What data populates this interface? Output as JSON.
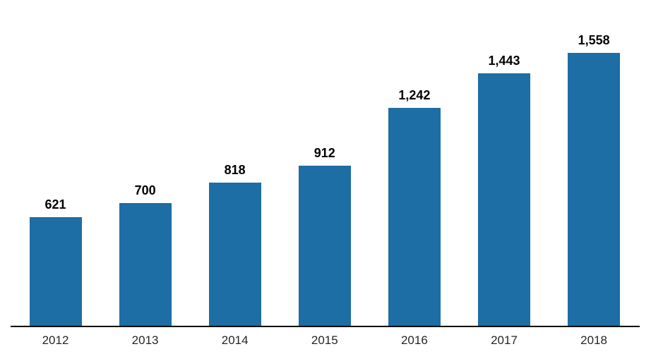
{
  "chart_data": {
    "type": "bar",
    "title": "",
    "xlabel": "",
    "ylabel": "",
    "categories": [
      "2012",
      "2013",
      "2014",
      "2015",
      "2016",
      "2017",
      "2018"
    ],
    "values": [
      621,
      700,
      818,
      912,
      1242,
      1443,
      1558
    ],
    "value_labels": [
      "621",
      "700",
      "818",
      "912",
      "1,242",
      "1,443",
      "1,558"
    ],
    "ylim": [
      0,
      1558
    ],
    "grid": false,
    "legend": false,
    "data_labels_position": "above-bars",
    "colors": {
      "bar_fill": "#1c6ea4",
      "value_label": "#000000",
      "tick_label": "#262626",
      "axis_line": "#000000",
      "background": "#ffffff"
    }
  }
}
